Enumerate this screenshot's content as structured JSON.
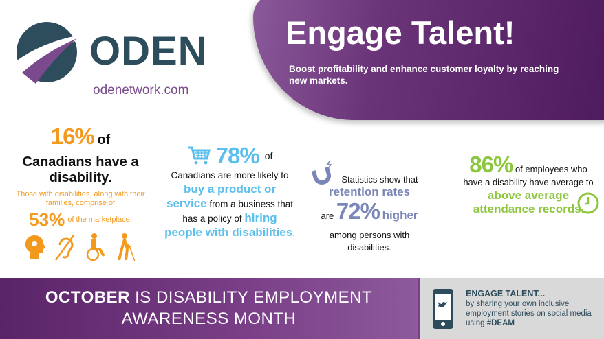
{
  "header": {
    "logo_text": "ODEN",
    "url": "odenetwork.com",
    "title": "Engage Talent!",
    "subtitle": "Boost profitability and enhance customer loyalty by reaching new markets."
  },
  "stats": [
    {
      "value": "16%",
      "text_a": "of",
      "text_b": "Canadians have a disability.",
      "sub": "Those with disabilities, along with their families, comprise of",
      "value2": "53%",
      "sub2": "of the marketplace."
    },
    {
      "value": "78%",
      "text_a": "of",
      "text_b": "Canadians are more likely to",
      "hl1": "buy a product or service",
      "text_c": "from a business that has a policy of",
      "hl2": "hiring people with disabilities",
      "end": "."
    },
    {
      "text_a": "Statistics show that",
      "hl1": "retention rates",
      "text_b": "are",
      "value": "72%",
      "hl2": "higher",
      "text_c": "among persons with disabilities."
    },
    {
      "value": "86%",
      "text_a": "of employees who have a disability have average to",
      "hl1": "above average attendance records",
      "end": "."
    }
  ],
  "band": {
    "bold": "OCTOBER",
    "text": "IS DISABILITY EMPLOYMENT AWARENESS MONTH"
  },
  "social": {
    "title": "ENGAGE TALENT...",
    "text": "by sharing your own inclusive employment stories on social media using",
    "tag": "#DEAM"
  },
  "colors": {
    "purple": "#6b3479",
    "orange": "#f39a1e",
    "blue": "#5bbfee",
    "slate": "#7a86b8",
    "green": "#8dc63f",
    "dark": "#2e4d5c"
  }
}
